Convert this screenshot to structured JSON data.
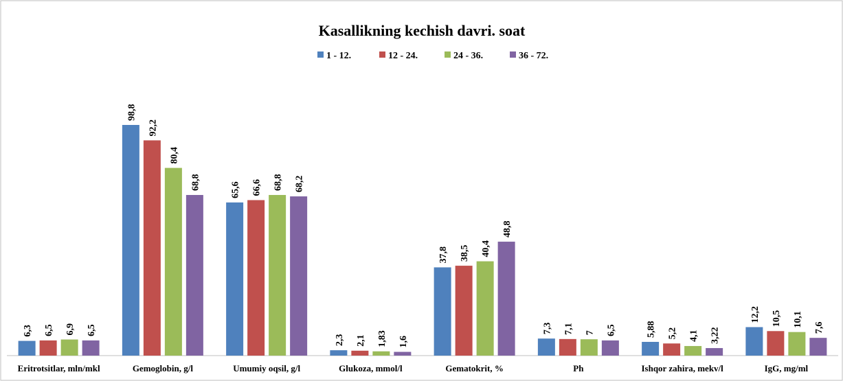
{
  "chart_data": {
    "type": "bar",
    "title": "Kasallikning kechish davri. soat",
    "categories": [
      "Eritrotsitlar, mln/mkl",
      "Gemoglobin, g/l",
      "Umumiy oqsil, g/l",
      "Glukoza, mmol/l",
      "Gematokrit, %",
      "Ph",
      "Ishqor zahira, mekv/l",
      "IgG, mg/ml"
    ],
    "series": [
      {
        "name": "1 - 12.",
        "color": "#4f81bd",
        "values": [
          6.3,
          98.8,
          65.6,
          2.3,
          37.8,
          7.3,
          5.88,
          12.2
        ],
        "value_labels": [
          "6,3",
          "98,8",
          "65,6",
          "2,3",
          "37,8",
          "7,3",
          "5,88",
          "12,2"
        ]
      },
      {
        "name": "12 - 24.",
        "color": "#c0504d",
        "values": [
          6.5,
          92.2,
          66.6,
          2.1,
          38.5,
          7.1,
          5.2,
          10.5
        ],
        "value_labels": [
          "6,5",
          "92,2",
          "66,6",
          "2,1",
          "38,5",
          "7,1",
          "5,2",
          "10,5"
        ]
      },
      {
        "name": "24 - 36.",
        "color": "#9bbb59",
        "values": [
          6.9,
          80.4,
          68.8,
          1.83,
          40.4,
          7,
          4.1,
          10.1
        ],
        "value_labels": [
          "6,9",
          "80,4",
          "68,8",
          "1,83",
          "40,4",
          "7",
          "4,1",
          "10,1"
        ]
      },
      {
        "name": "36 - 72.",
        "color": "#8064a2",
        "values": [
          6.5,
          68.8,
          68.2,
          1.6,
          48.8,
          6.5,
          3.22,
          7.6
        ],
        "value_labels": [
          "6,5",
          "68,8",
          "68,2",
          "1,6",
          "48,8",
          "6,5",
          "3,22",
          "7,6"
        ]
      }
    ],
    "legend": "top"
  }
}
